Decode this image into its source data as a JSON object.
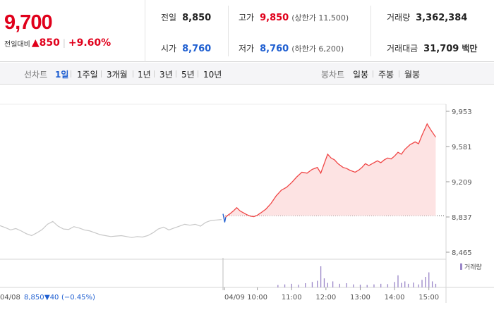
{
  "quote": {
    "price": "9,700",
    "change_label": "전일대비",
    "change_arrow": "▲",
    "change_value": "850",
    "change_pct": "+9.60%"
  },
  "stats": {
    "prev_label": "전일",
    "prev_value": "8,850",
    "high_label": "고가",
    "high_value": "9,850",
    "high_sub": "(상한가 11,500)",
    "volume_label": "거래량",
    "volume_value": "3,362,384",
    "open_label": "시가",
    "open_value": "8,760",
    "low_label": "저가",
    "low_value": "8,760",
    "low_sub": "(하한가 6,200)",
    "amount_label": "거래대금",
    "amount_value": "31,709",
    "amount_unit": "백만"
  },
  "toolbar": {
    "line_label": "선차트",
    "line_periods": [
      "1일",
      "1주일",
      "3개월",
      "1년",
      "3년",
      "5년",
      "10년"
    ],
    "active_period": "1일",
    "candle_label": "봉차트",
    "candle_periods": [
      "일봉",
      "주봉",
      "월봉"
    ]
  },
  "colors": {
    "up": "#e0001b",
    "down": "#1f5fd1",
    "prev_day_line": "#c8c8c8",
    "today_line": "#f04545",
    "fill": "#fde3e3",
    "volume": "#9a86c8"
  },
  "chart_data": {
    "type": "line",
    "y_ticks": [
      "9,953",
      "9,581",
      "9,209",
      "8,837",
      "8,465"
    ],
    "ylim": [
      8465,
      9953
    ],
    "x_ticks": [
      "04/09",
      "10:00",
      "11:00",
      "12:00",
      "13:00",
      "14:00",
      "15:00"
    ],
    "reference_price": 8850,
    "prev_day": {
      "date": "04/08",
      "close": "8,850",
      "change_arrow": "▼",
      "change": "40",
      "change_pct": "(−0.45%)",
      "values": [
        8745,
        8725,
        8700,
        8715,
        8690,
        8660,
        8640,
        8670,
        8705,
        8760,
        8790,
        8740,
        8710,
        8705,
        8735,
        8720,
        8700,
        8690,
        8670,
        8650,
        8640,
        8630,
        8635,
        8640,
        8630,
        8620,
        8630,
        8625,
        8640,
        8670,
        8710,
        8730,
        8700,
        8720,
        8740,
        8760,
        8750,
        8760,
        8740,
        8780,
        8800,
        8805,
        8810
      ]
    },
    "today": {
      "values": [
        8870,
        8780,
        8835,
        8850,
        8870,
        8900,
        8935,
        8900,
        8880,
        8860,
        8845,
        8840,
        8855,
        8880,
        8920,
        8980,
        9060,
        9120,
        9150,
        9200,
        9260,
        9310,
        9300,
        9340,
        9360,
        9300,
        9400,
        9500,
        9460,
        9440,
        9400,
        9360,
        9350,
        9330,
        9310,
        9330,
        9360,
        9400,
        9380,
        9400,
        9430,
        9410,
        9440,
        9460,
        9450,
        9480,
        9520,
        9500,
        9550,
        9600,
        9630,
        9610,
        9700,
        9820,
        9760,
        9680
      ],
      "x_hours": [
        9.0,
        9.05,
        9.08,
        9.12,
        9.2,
        9.3,
        9.4,
        9.5,
        9.6,
        9.7,
        9.8,
        9.9,
        10.0,
        10.1,
        10.25,
        10.4,
        10.55,
        10.7,
        10.85,
        11.0,
        11.15,
        11.3,
        11.45,
        11.6,
        11.75,
        11.85,
        11.95,
        12.05,
        12.15,
        12.25,
        12.35,
        12.5,
        12.6,
        12.7,
        12.85,
        12.95,
        13.05,
        13.15,
        13.25,
        13.35,
        13.5,
        13.6,
        13.7,
        13.8,
        13.9,
        14.0,
        14.1,
        14.2,
        14.3,
        14.45,
        14.6,
        14.7,
        14.8,
        14.95,
        15.05,
        15.2
      ]
    },
    "volume": {
      "legend": "거래량",
      "x_hours": [
        10.6,
        10.8,
        11.0,
        11.2,
        11.4,
        11.6,
        11.75,
        11.85,
        11.95,
        12.05,
        12.2,
        12.4,
        12.6,
        12.8,
        13.0,
        13.2,
        13.4,
        13.6,
        13.8,
        14.0,
        14.1,
        14.2,
        14.3,
        14.4,
        14.55,
        14.7,
        14.8,
        14.9,
        15.0,
        15.1,
        15.2
      ],
      "values": [
        8,
        10,
        12,
        9,
        14,
        18,
        22,
        70,
        30,
        15,
        20,
        12,
        14,
        10,
        9,
        8,
        10,
        12,
        11,
        18,
        40,
        15,
        20,
        12,
        16,
        10,
        25,
        35,
        50,
        20,
        12
      ]
    }
  }
}
